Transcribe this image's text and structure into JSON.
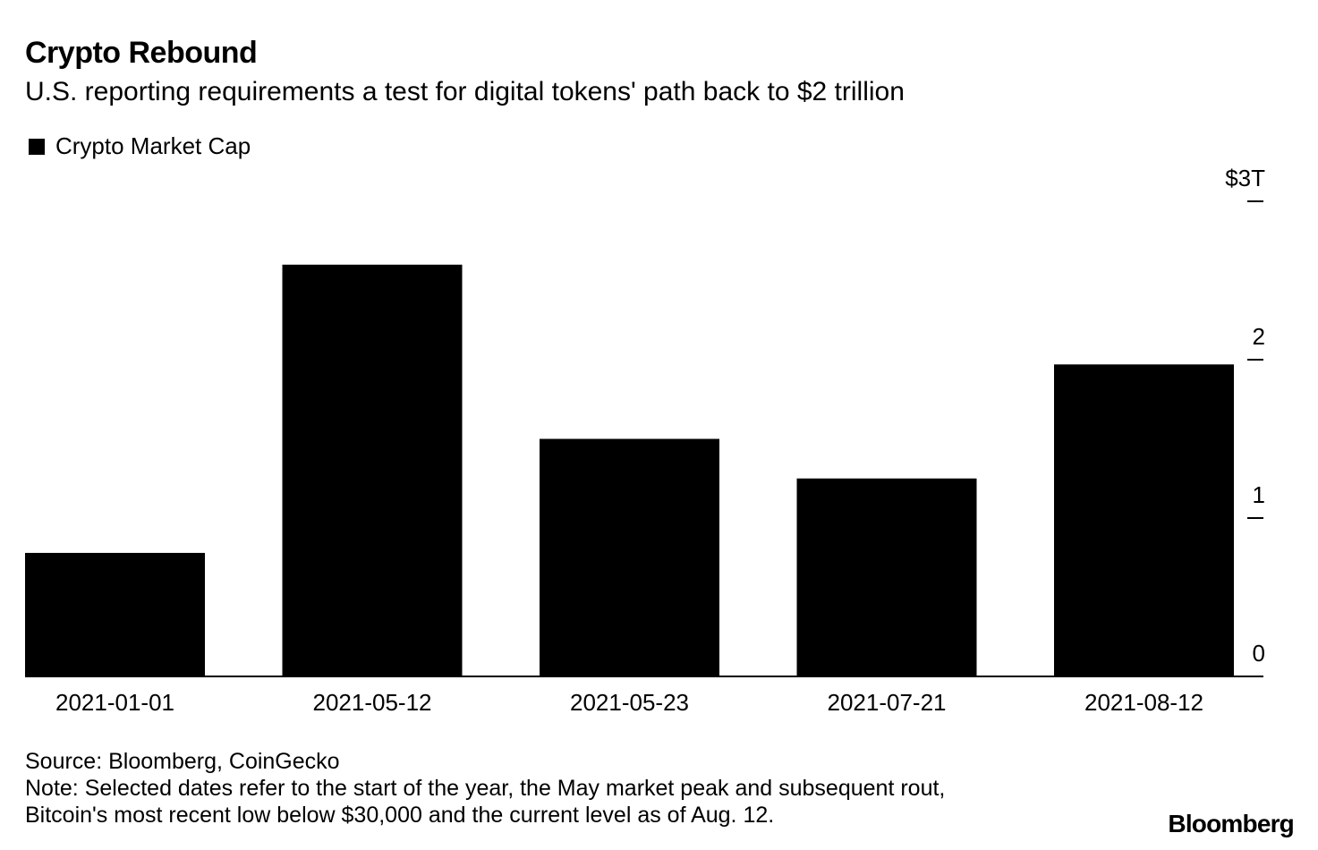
{
  "header": {
    "title": "Crypto Rebound",
    "subtitle": "U.S. reporting requirements a test for digital tokens' path back to $2 trillion"
  },
  "legend": {
    "label": "Crypto Market Cap",
    "color": "#000000"
  },
  "chart_data": {
    "type": "bar",
    "title": "Crypto Rebound",
    "subtitle": "U.S. reporting requirements a test for digital tokens' path back to $2 trillion",
    "categories": [
      "2021-01-01",
      "2021-05-12",
      "2021-05-23",
      "2021-07-21",
      "2021-08-12"
    ],
    "series": [
      {
        "name": "Crypto Market Cap",
        "values": [
          0.78,
          2.6,
          1.5,
          1.25,
          1.97
        ],
        "color": "#000000"
      }
    ],
    "xlabel": "",
    "ylabel": "",
    "ylim": [
      0,
      3
    ],
    "yticks": [
      0,
      1,
      2,
      3
    ],
    "ytick_labels": [
      "0",
      "1",
      "2",
      "$3T"
    ],
    "y_axis_side": "right",
    "grid": false,
    "legend_position": "top-left"
  },
  "footer": {
    "source": "Source: Bloomberg, CoinGecko",
    "note_line1": "Note: Selected dates refer to the start of the year, the May market peak and subsequent rout,",
    "note_line2": "Bitcoin's most recent low below $30,000 and the current level as of Aug. 12.",
    "brand": "Bloomberg"
  }
}
